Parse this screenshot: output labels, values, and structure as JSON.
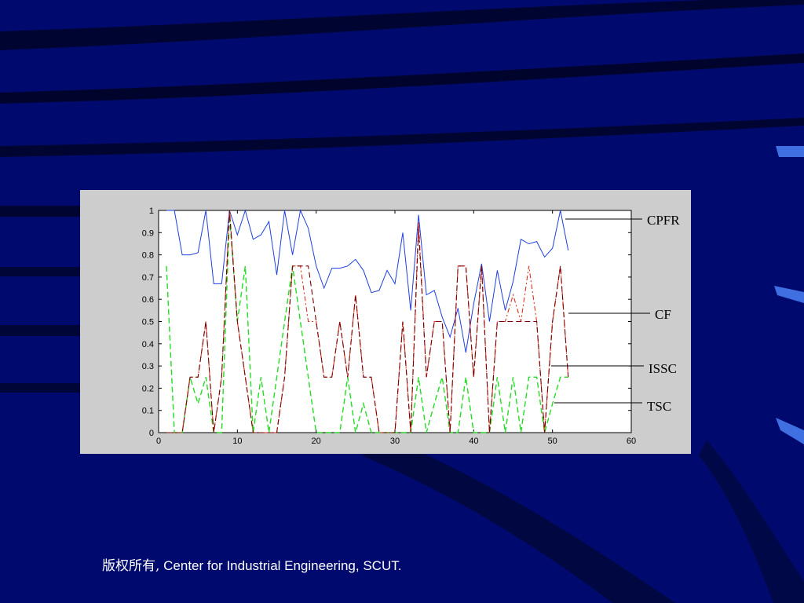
{
  "footer": {
    "copyright": "版权所有,",
    "org": " Center for Industrial Engineering, SCUT."
  },
  "colors": {
    "background": "#000a6e",
    "panel": "#cdcdcd",
    "cpfr": "#1f3fe0",
    "cf": "#e03020",
    "issc": "#7a0000",
    "tsc": "#22dd22"
  },
  "chart_data": {
    "type": "line",
    "xlim": [
      0,
      60
    ],
    "ylim": [
      0,
      1
    ],
    "xticks": [
      0,
      10,
      20,
      30,
      40,
      50,
      60
    ],
    "yticks": [
      0,
      0.1,
      0.2,
      0.3,
      0.4,
      0.5,
      0.6,
      0.7,
      0.8,
      0.9,
      1
    ],
    "grid": false,
    "legend": "right-callouts",
    "series": [
      {
        "name": "CPFR",
        "style": "solid",
        "x": [
          1,
          2,
          3,
          4,
          5,
          6,
          7,
          8,
          9,
          10,
          11,
          12,
          13,
          14,
          15,
          16,
          17,
          18,
          19,
          20,
          21,
          22,
          23,
          24,
          25,
          26,
          27,
          28,
          29,
          30,
          31,
          32,
          33,
          34,
          35,
          36,
          37,
          38,
          39,
          40,
          41,
          42,
          43,
          44,
          45,
          46,
          47,
          48,
          49,
          50,
          51,
          52
        ],
        "y": [
          1,
          1,
          0.8,
          0.8,
          0.81,
          1,
          0.67,
          0.67,
          1,
          0.89,
          1,
          0.87,
          0.89,
          0.95,
          0.71,
          1,
          0.8,
          1,
          0.92,
          0.75,
          0.65,
          0.74,
          0.74,
          0.75,
          0.78,
          0.73,
          0.63,
          0.64,
          0.73,
          0.67,
          0.9,
          0.55,
          0.98,
          0.62,
          0.64,
          0.52,
          0.43,
          0.56,
          0.36,
          0.58,
          0.76,
          0.5,
          0.73,
          0.55,
          0.68,
          0.87,
          0.85,
          0.86,
          0.79,
          0.83,
          1,
          0.82
        ]
      },
      {
        "name": "CF",
        "style": "dashdot",
        "x": [
          1,
          2,
          3,
          4,
          5,
          6,
          7,
          8,
          9,
          10,
          11,
          12,
          13,
          14,
          15,
          16,
          17,
          18,
          19,
          20,
          21,
          22,
          23,
          24,
          25,
          26,
          27,
          28,
          29,
          30,
          31,
          32,
          33,
          34,
          35,
          36,
          37,
          38,
          39,
          40,
          41,
          42,
          43,
          44,
          45,
          46,
          47,
          48,
          49,
          50,
          51,
          52
        ],
        "y": [
          0,
          0,
          0,
          0.25,
          0.25,
          0.5,
          0,
          0.25,
          1,
          0.5,
          0.25,
          0,
          0,
          0,
          0,
          0.25,
          0.75,
          0.75,
          0.5,
          0.5,
          0.25,
          0.25,
          0.5,
          0.25,
          0.62,
          0.25,
          0.25,
          0,
          0,
          0,
          0.5,
          0,
          0.95,
          0.25,
          0.5,
          0.5,
          0,
          0.75,
          0.75,
          0.25,
          0.75,
          0,
          0.5,
          0.5,
          0.62,
          0.5,
          0.75,
          0.5,
          0,
          0.5,
          0.75,
          0.25
        ]
      },
      {
        "name": "ISSC",
        "style": "dashed",
        "x": [
          1,
          2,
          3,
          4,
          5,
          6,
          7,
          8,
          9,
          10,
          11,
          12,
          13,
          14,
          15,
          16,
          17,
          18,
          19,
          20,
          21,
          22,
          23,
          24,
          25,
          26,
          27,
          28,
          29,
          30,
          31,
          32,
          33,
          34,
          35,
          36,
          37,
          38,
          39,
          40,
          41,
          42,
          43,
          44,
          45,
          46,
          47,
          48,
          49,
          50,
          51,
          52
        ],
        "y": [
          0,
          0,
          0,
          0.25,
          0.25,
          0.5,
          0,
          0.25,
          1,
          0.5,
          0.25,
          0,
          0,
          0,
          0,
          0.25,
          0.75,
          0.75,
          0.75,
          0.5,
          0.25,
          0.25,
          0.5,
          0.25,
          0.62,
          0.25,
          0.25,
          0,
          0,
          0,
          0.5,
          0,
          0.92,
          0.25,
          0.5,
          0.5,
          0,
          0.75,
          0.75,
          0.25,
          0.75,
          0,
          0.5,
          0.5,
          0.5,
          0.5,
          0.5,
          0.5,
          0,
          0.5,
          0.75,
          0.25
        ]
      },
      {
        "name": "TSC",
        "style": "dashed",
        "x": [
          1,
          2,
          3,
          4,
          5,
          6,
          7,
          8,
          9,
          10,
          11,
          12,
          13,
          14,
          15,
          16,
          17,
          18,
          19,
          20,
          21,
          22,
          23,
          24,
          25,
          26,
          27,
          28,
          29,
          30,
          31,
          32,
          33,
          34,
          35,
          36,
          37,
          38,
          39,
          40,
          41,
          42,
          43,
          44,
          45,
          46,
          47,
          48,
          49,
          50,
          51,
          52
        ],
        "y": [
          0.75,
          0,
          0,
          0.25,
          0.13,
          0.25,
          0,
          0,
          0.98,
          0.5,
          0.75,
          0,
          0.25,
          0,
          0.25,
          0.5,
          0.75,
          0.5,
          0.25,
          0,
          0,
          0,
          0,
          0.25,
          0,
          0.13,
          0,
          0,
          0,
          0,
          0,
          0,
          0.25,
          0,
          0.13,
          0.25,
          0,
          0,
          0.25,
          0,
          0,
          0,
          0.25,
          0,
          0.25,
          0,
          0.25,
          0.25,
          0,
          0.13,
          0.25,
          0.25
        ]
      }
    ]
  }
}
